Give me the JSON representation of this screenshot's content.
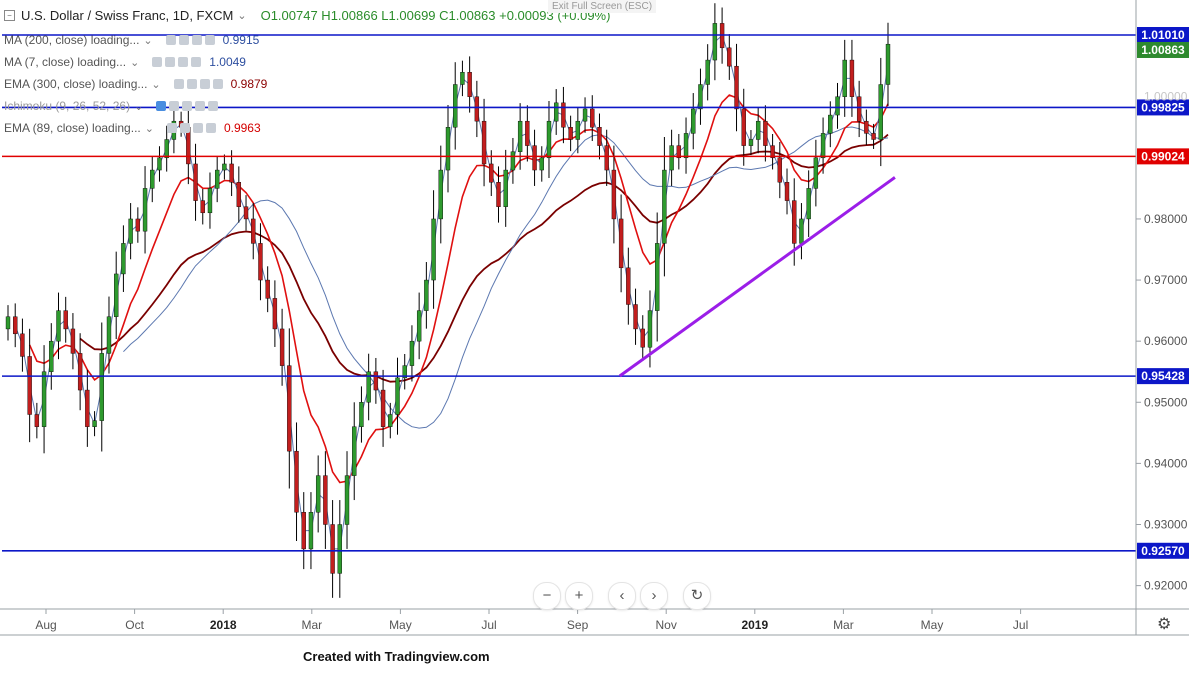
{
  "header": {
    "title": "U.S. Dollar / Swiss Franc, 1D, FXCM",
    "ohlc": "O1.00747  H1.00866  L1.00699  C1.00863  +0.00093 (+0.09%)",
    "exit_label": "Exit Full Screen (ESC)"
  },
  "indicators": [
    {
      "name": "MA (200, close) loading...",
      "value": "0.9915",
      "color": "#2e4fa0"
    },
    {
      "name": "MA (7, close) loading...",
      "value": "1.0049",
      "color": "#2e4fa0"
    },
    {
      "name": "EMA (300, close) loading...",
      "value": "0.9879",
      "color": "#8b0000"
    },
    {
      "name": "Ichimoku (9, 26, 52, 26)",
      "value": "",
      "color": "#888888"
    },
    {
      "name": "EMA (89, close) loading...",
      "value": "0.9963",
      "color": "#d40000"
    }
  ],
  "nav": {
    "zoom_out": "−",
    "zoom_in": "+",
    "prev": "‹",
    "next": "›",
    "reset": "↻"
  },
  "footer": "Created with Tradingview.com",
  "settings_icon": "gear-icon",
  "chart_data": {
    "type": "candlestick",
    "x_ticks": [
      "Aug",
      "Oct",
      "2018",
      "Mar",
      "May",
      "Jul",
      "Sep",
      "Nov",
      "2019",
      "Mar",
      "May",
      "Jul"
    ],
    "y_ticks": [
      "0.98000",
      "0.97000",
      "0.96000",
      "0.95000",
      "0.94000",
      "0.93000",
      "0.92000"
    ],
    "y_ticks_faded": [
      "1.00000"
    ],
    "ylim": [
      0.9165,
      1.0155
    ],
    "last_price": "1.00863",
    "colors": {
      "up": "#2e9a2e",
      "down": "#c21e1e",
      "wick": "#000000"
    },
    "horizontal_levels": [
      {
        "value": 1.0101,
        "label": "1.01010",
        "color": "#0c17c8"
      },
      {
        "value": 0.99825,
        "label": "0.99825",
        "color": "#0c17c8"
      },
      {
        "value": 0.99024,
        "label": "0.99024",
        "color": "#e00000"
      },
      {
        "value": 0.95428,
        "label": "0.95428",
        "color": "#0c17c8"
      },
      {
        "value": 0.9257,
        "label": "0.92570",
        "color": "#0c17c8"
      }
    ],
    "trendline": {
      "from": [
        0.5462,
        0.9543
      ],
      "to": [
        0.7895,
        0.9868
      ],
      "color": "#9b1ee8"
    },
    "closes": [
      0.964,
      0.9612,
      0.9575,
      0.948,
      0.946,
      0.955,
      0.96,
      0.965,
      0.962,
      0.958,
      0.952,
      0.946,
      0.947,
      0.958,
      0.964,
      0.971,
      0.976,
      0.98,
      0.978,
      0.985,
      0.988,
      0.99,
      0.993,
      0.996,
      0.995,
      0.989,
      0.983,
      0.981,
      0.985,
      0.988,
      0.989,
      0.986,
      0.982,
      0.98,
      0.976,
      0.97,
      0.967,
      0.962,
      0.956,
      0.942,
      0.932,
      0.926,
      0.932,
      0.938,
      0.93,
      0.922,
      0.93,
      0.938,
      0.946,
      0.95,
      0.955,
      0.952,
      0.946,
      0.948,
      0.954,
      0.956,
      0.96,
      0.965,
      0.97,
      0.98,
      0.988,
      0.995,
      1.002,
      1.004,
      1.0,
      0.996,
      0.989,
      0.986,
      0.982,
      0.988,
      0.991,
      0.996,
      0.992,
      0.988,
      0.99,
      0.996,
      0.999,
      0.995,
      0.993,
      0.996,
      0.998,
      0.995,
      0.992,
      0.988,
      0.98,
      0.972,
      0.966,
      0.962,
      0.959,
      0.965,
      0.976,
      0.988,
      0.992,
      0.99,
      0.994,
      0.998,
      1.002,
      1.006,
      1.012,
      1.008,
      1.005,
      0.998,
      0.992,
      0.993,
      0.996,
      0.992,
      0.99,
      0.986,
      0.983,
      0.976,
      0.98,
      0.985,
      0.99,
      0.994,
      0.997,
      1.0,
      1.006,
      1.0,
      0.996,
      0.994,
      0.993,
      1.002,
      1.0086
    ]
  }
}
